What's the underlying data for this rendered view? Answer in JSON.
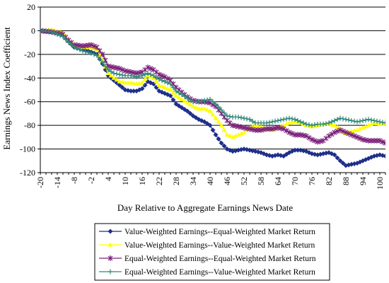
{
  "chart_data": {
    "type": "line",
    "title": "",
    "xlabel": "Day Relative to Aggregate Earnings News Date",
    "ylabel": "Earnings News Index Coefficient",
    "xlim": [
      -20,
      102
    ],
    "ylim": [
      -120,
      20
    ],
    "xticks": [
      -20,
      -14,
      -8,
      -2,
      4,
      10,
      16,
      22,
      28,
      34,
      40,
      46,
      52,
      58,
      64,
      70,
      76,
      82,
      88,
      94,
      100
    ],
    "yticks": [
      20,
      0,
      -20,
      -40,
      -60,
      -80,
      -100,
      -120
    ],
    "grid": "horizontal",
    "legend_position": "bottom",
    "series": [
      {
        "name": "Value-Weighted Earnings--Equal-Weighted Market Return",
        "color": "#1f2f8a",
        "marker": "diamond",
        "points": [
          [
            -20,
            0
          ],
          [
            -16,
            -1
          ],
          [
            -12,
            -3
          ],
          [
            -10,
            -9
          ],
          [
            -8,
            -14
          ],
          [
            -5,
            -16
          ],
          [
            -2,
            -18
          ],
          [
            0,
            -20
          ],
          [
            2,
            -28
          ],
          [
            4,
            -38
          ],
          [
            6,
            -42
          ],
          [
            8,
            -46
          ],
          [
            10,
            -50
          ],
          [
            12,
            -51
          ],
          [
            14,
            -51
          ],
          [
            16,
            -49
          ],
          [
            18,
            -43
          ],
          [
            20,
            -45
          ],
          [
            22,
            -51
          ],
          [
            24,
            -53
          ],
          [
            26,
            -55
          ],
          [
            28,
            -62
          ],
          [
            30,
            -65
          ],
          [
            32,
            -68
          ],
          [
            34,
            -72
          ],
          [
            36,
            -75
          ],
          [
            38,
            -77
          ],
          [
            40,
            -80
          ],
          [
            42,
            -88
          ],
          [
            44,
            -95
          ],
          [
            46,
            -100
          ],
          [
            48,
            -102
          ],
          [
            50,
            -101
          ],
          [
            52,
            -100
          ],
          [
            54,
            -101
          ],
          [
            56,
            -102
          ],
          [
            58,
            -103
          ],
          [
            60,
            -105
          ],
          [
            62,
            -106
          ],
          [
            64,
            -105
          ],
          [
            66,
            -106
          ],
          [
            68,
            -103
          ],
          [
            70,
            -101
          ],
          [
            72,
            -101
          ],
          [
            74,
            -102
          ],
          [
            76,
            -104
          ],
          [
            78,
            -105
          ],
          [
            80,
            -104
          ],
          [
            82,
            -103
          ],
          [
            84,
            -105
          ],
          [
            86,
            -110
          ],
          [
            88,
            -114
          ],
          [
            90,
            -113
          ],
          [
            92,
            -112
          ],
          [
            94,
            -110
          ],
          [
            96,
            -108
          ],
          [
            98,
            -106
          ],
          [
            100,
            -105
          ],
          [
            102,
            -106
          ]
        ]
      },
      {
        "name": "Value-Weighted Earnings--Value-Weighted Market Return",
        "color": "#ffff00",
        "marker": "triangle",
        "points": [
          [
            -20,
            0
          ],
          [
            -16,
            1
          ],
          [
            -12,
            -2
          ],
          [
            -10,
            -8
          ],
          [
            -8,
            -12
          ],
          [
            -5,
            -14
          ],
          [
            -2,
            -14
          ],
          [
            0,
            -16
          ],
          [
            2,
            -25
          ],
          [
            4,
            -36
          ],
          [
            6,
            -40
          ],
          [
            8,
            -43
          ],
          [
            10,
            -44
          ],
          [
            12,
            -44
          ],
          [
            14,
            -45
          ],
          [
            16,
            -44
          ],
          [
            18,
            -38
          ],
          [
            20,
            -40
          ],
          [
            22,
            -46
          ],
          [
            24,
            -48
          ],
          [
            26,
            -50
          ],
          [
            28,
            -55
          ],
          [
            30,
            -58
          ],
          [
            32,
            -61
          ],
          [
            34,
            -64
          ],
          [
            36,
            -66
          ],
          [
            38,
            -66
          ],
          [
            40,
            -68
          ],
          [
            42,
            -74
          ],
          [
            44,
            -80
          ],
          [
            46,
            -88
          ],
          [
            48,
            -90
          ],
          [
            50,
            -88
          ],
          [
            52,
            -86
          ],
          [
            54,
            -82
          ],
          [
            56,
            -80
          ],
          [
            58,
            -81
          ],
          [
            60,
            -83
          ],
          [
            62,
            -84
          ],
          [
            64,
            -82
          ],
          [
            66,
            -80
          ],
          [
            68,
            -78
          ],
          [
            70,
            -77
          ],
          [
            72,
            -78
          ],
          [
            74,
            -80
          ],
          [
            76,
            -81
          ],
          [
            78,
            -80
          ],
          [
            80,
            -79
          ],
          [
            82,
            -79
          ],
          [
            84,
            -80
          ],
          [
            86,
            -83
          ],
          [
            88,
            -87
          ],
          [
            90,
            -85
          ],
          [
            92,
            -84
          ],
          [
            94,
            -82
          ],
          [
            96,
            -80
          ],
          [
            98,
            -78
          ],
          [
            100,
            -79
          ],
          [
            102,
            -79
          ]
        ]
      },
      {
        "name": "Equal-Weighted Earnings--Equal-Weighted Market Return",
        "color": "#7a1f7a",
        "marker": "star",
        "points": [
          [
            -20,
            0
          ],
          [
            -16,
            -1
          ],
          [
            -12,
            -3
          ],
          [
            -10,
            -8
          ],
          [
            -8,
            -12
          ],
          [
            -5,
            -13
          ],
          [
            -2,
            -12
          ],
          [
            0,
            -14
          ],
          [
            2,
            -20
          ],
          [
            4,
            -30
          ],
          [
            6,
            -31
          ],
          [
            8,
            -32
          ],
          [
            10,
            -34
          ],
          [
            12,
            -35
          ],
          [
            14,
            -36
          ],
          [
            16,
            -35
          ],
          [
            18,
            -31
          ],
          [
            20,
            -33
          ],
          [
            22,
            -37
          ],
          [
            24,
            -39
          ],
          [
            26,
            -42
          ],
          [
            28,
            -48
          ],
          [
            30,
            -52
          ],
          [
            32,
            -56
          ],
          [
            34,
            -59
          ],
          [
            36,
            -60
          ],
          [
            38,
            -60
          ],
          [
            40,
            -61
          ],
          [
            42,
            -64
          ],
          [
            44,
            -70
          ],
          [
            46,
            -76
          ],
          [
            48,
            -80
          ],
          [
            50,
            -81
          ],
          [
            52,
            -82
          ],
          [
            54,
            -83
          ],
          [
            56,
            -84
          ],
          [
            58,
            -84
          ],
          [
            60,
            -83
          ],
          [
            62,
            -83
          ],
          [
            64,
            -82
          ],
          [
            66,
            -83
          ],
          [
            68,
            -86
          ],
          [
            70,
            -88
          ],
          [
            72,
            -88
          ],
          [
            74,
            -89
          ],
          [
            76,
            -92
          ],
          [
            78,
            -94
          ],
          [
            80,
            -93
          ],
          [
            82,
            -89
          ],
          [
            84,
            -86
          ],
          [
            86,
            -84
          ],
          [
            88,
            -86
          ],
          [
            90,
            -88
          ],
          [
            92,
            -90
          ],
          [
            94,
            -92
          ],
          [
            96,
            -93
          ],
          [
            98,
            -93
          ],
          [
            100,
            -93
          ],
          [
            102,
            -95
          ]
        ]
      },
      {
        "name": "Equal-Weighted Earnings--Value-Weighted Market Return",
        "color": "#2f8a7a",
        "marker": "plus",
        "points": [
          [
            -20,
            0
          ],
          [
            -16,
            -1
          ],
          [
            -12,
            -5
          ],
          [
            -10,
            -10
          ],
          [
            -8,
            -14
          ],
          [
            -5,
            -17
          ],
          [
            -2,
            -19
          ],
          [
            0,
            -21
          ],
          [
            2,
            -27
          ],
          [
            4,
            -33
          ],
          [
            6,
            -36
          ],
          [
            8,
            -37
          ],
          [
            10,
            -38
          ],
          [
            12,
            -38
          ],
          [
            14,
            -39
          ],
          [
            16,
            -38
          ],
          [
            18,
            -36
          ],
          [
            20,
            -38
          ],
          [
            22,
            -41
          ],
          [
            24,
            -43
          ],
          [
            26,
            -45
          ],
          [
            28,
            -51
          ],
          [
            30,
            -54
          ],
          [
            32,
            -57
          ],
          [
            34,
            -60
          ],
          [
            36,
            -60
          ],
          [
            38,
            -59
          ],
          [
            40,
            -58
          ],
          [
            42,
            -62
          ],
          [
            44,
            -67
          ],
          [
            46,
            -72
          ],
          [
            48,
            -73
          ],
          [
            50,
            -73
          ],
          [
            52,
            -74
          ],
          [
            54,
            -75
          ],
          [
            56,
            -78
          ],
          [
            58,
            -78
          ],
          [
            60,
            -78
          ],
          [
            62,
            -77
          ],
          [
            64,
            -76
          ],
          [
            66,
            -75
          ],
          [
            68,
            -74
          ],
          [
            70,
            -75
          ],
          [
            72,
            -77
          ],
          [
            74,
            -79
          ],
          [
            76,
            -80
          ],
          [
            78,
            -79
          ],
          [
            80,
            -79
          ],
          [
            82,
            -78
          ],
          [
            84,
            -76
          ],
          [
            86,
            -74
          ],
          [
            88,
            -75
          ],
          [
            90,
            -76
          ],
          [
            92,
            -77
          ],
          [
            94,
            -76
          ],
          [
            96,
            -75
          ],
          [
            98,
            -76
          ],
          [
            100,
            -77
          ],
          [
            102,
            -78
          ]
        ]
      }
    ]
  }
}
